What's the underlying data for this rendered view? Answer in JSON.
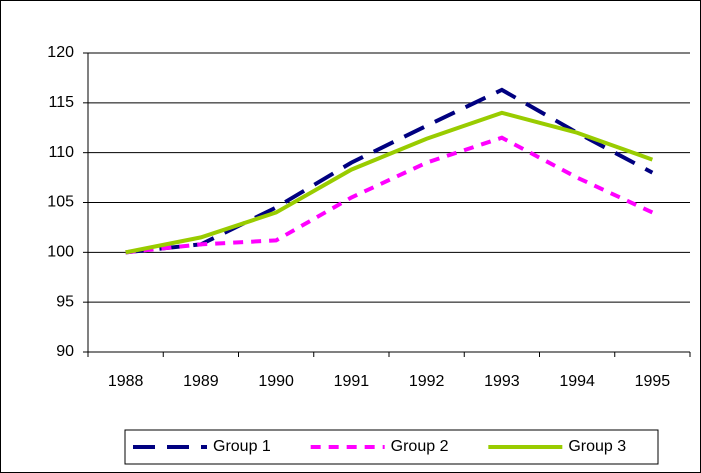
{
  "chart_data": {
    "type": "line",
    "categories": [
      "1988",
      "1989",
      "1990",
      "1991",
      "1992",
      "1993",
      "1994",
      "1995"
    ],
    "series": [
      {
        "name": "Group 1",
        "color": "#000080",
        "dash": "dashed",
        "values": [
          100,
          100.8,
          104.5,
          109,
          112.7,
          116.3,
          112,
          108
        ]
      },
      {
        "name": "Group 2",
        "color": "#ff00ff",
        "dash": "dotted",
        "values": [
          100,
          100.8,
          101.2,
          105.5,
          109,
          111.5,
          107.5,
          104
        ]
      },
      {
        "name": "Group 3",
        "color": "#99cc00",
        "dash": "solid",
        "values": [
          100,
          101.5,
          104,
          108.3,
          111.4,
          114,
          112,
          109.3
        ]
      }
    ],
    "ylim": [
      90,
      120
    ],
    "yticks": [
      90,
      95,
      100,
      105,
      110,
      115,
      120
    ],
    "grid": true,
    "legend": "bottom"
  }
}
